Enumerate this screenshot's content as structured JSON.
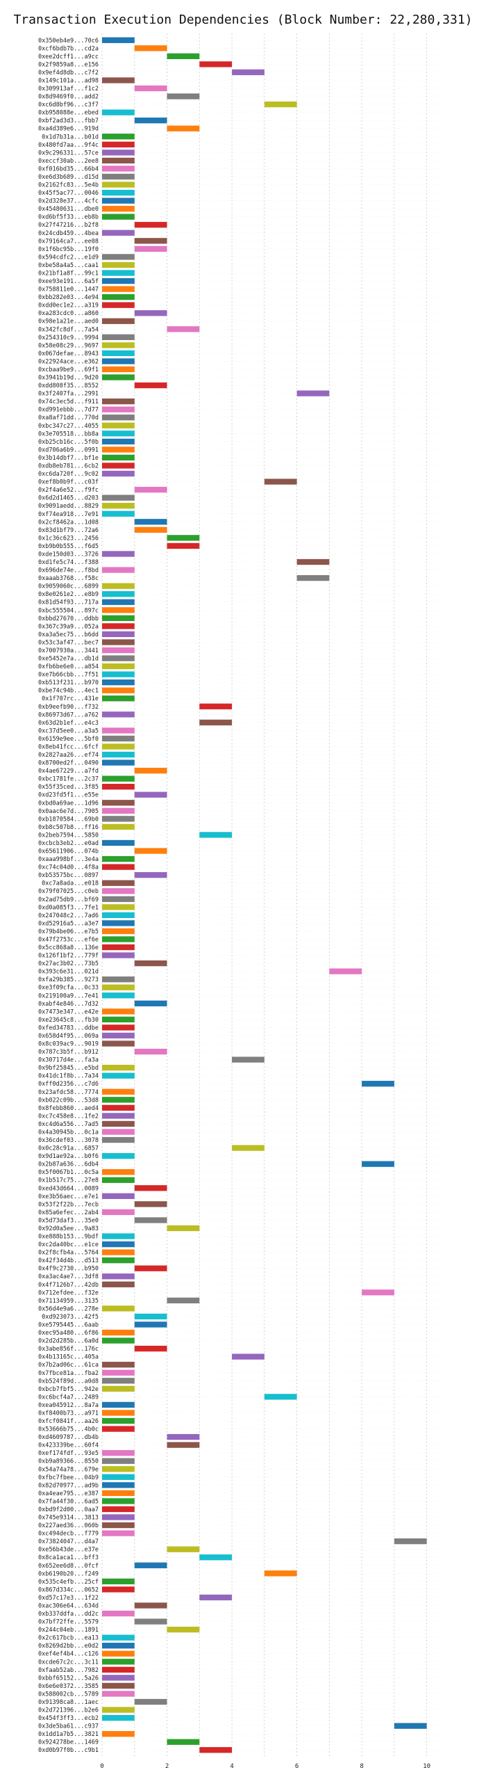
{
  "chart_data": {
    "type": "bar",
    "orientation": "horizontal",
    "title": "Transaction Execution Dependencies (Block Number: 22,280,331)",
    "xlabel": "",
    "ylabel": "",
    "xlim": [
      0,
      10.5
    ],
    "x_ticks": [
      0,
      2,
      4,
      6,
      8,
      10
    ],
    "grid": true,
    "legend": "none",
    "bar_duration": 1,
    "colors": [
      "#1f77b4",
      "#ff7f0e",
      "#2ca02c",
      "#d62728",
      "#9467bd",
      "#8c564b",
      "#e377c2",
      "#7f7f7f",
      "#bcbd22",
      "#17becf"
    ],
    "transactions": [
      {
        "label": "0x350eb4e9...70c6",
        "start": 0
      },
      {
        "label": "0xcf6bdb7b...cd2a",
        "start": 1
      },
      {
        "label": "0xee2dcff1...a9cc",
        "start": 2
      },
      {
        "label": "0x2f9859a8...e156",
        "start": 3
      },
      {
        "label": "0x9ef4d8db...c7f2",
        "start": 4
      },
      {
        "label": "0x149c101a...ad98",
        "start": 0
      },
      {
        "label": "0x309913af...f1c2",
        "start": 1
      },
      {
        "label": "0x8d9469f0...add2",
        "start": 2
      },
      {
        "label": "0xc6d8bf96...c3f7",
        "start": 5
      },
      {
        "label": "0xb958088e...ebed",
        "start": 0
      },
      {
        "label": "0xbf2ad3d3...fbb7",
        "start": 1
      },
      {
        "label": "0xa4d389e6...919d",
        "start": 2
      },
      {
        "label": "0x1d7b31a...b01d",
        "start": 0
      },
      {
        "label": "0x480fd7aa...9f4c",
        "start": 0
      },
      {
        "label": "0x9c296331...57ce",
        "start": 0
      },
      {
        "label": "0xeccf30ab...2ee8",
        "start": 0
      },
      {
        "label": "0xf016bd35...66b4",
        "start": 0
      },
      {
        "label": "0xe6d3b689...d15d",
        "start": 0
      },
      {
        "label": "0x2162fc83...5e4b",
        "start": 0
      },
      {
        "label": "0x45f5ac77...0046",
        "start": 0
      },
      {
        "label": "0x2d328e37...4cfc",
        "start": 0
      },
      {
        "label": "0x45480631...dbe0",
        "start": 0
      },
      {
        "label": "0xd6bf5f33...eb8b",
        "start": 0
      },
      {
        "label": "0x27f47216...b2f8",
        "start": 1
      },
      {
        "label": "0x24cdb459...4bea",
        "start": 0
      },
      {
        "label": "0x79164ca7...ee08",
        "start": 1
      },
      {
        "label": "0x1f6bc95b...19f0",
        "start": 1
      },
      {
        "label": "0x594cdfc2...e1d9",
        "start": 0
      },
      {
        "label": "0xbe58a4a5...caa1",
        "start": 0
      },
      {
        "label": "0x21bf1a8f...99c1",
        "start": 0
      },
      {
        "label": "0xee93e191...6a5f",
        "start": 0
      },
      {
        "label": "0x758811e0...1447",
        "start": 0
      },
      {
        "label": "0xbb282e03...4e94",
        "start": 0
      },
      {
        "label": "0xdd0ec1e2...a319",
        "start": 0
      },
      {
        "label": "0xa283cdc0...a860",
        "start": 1
      },
      {
        "label": "0x98e1a21e...aed0",
        "start": 0
      },
      {
        "label": "0x342fc8df...7a54",
        "start": 2
      },
      {
        "label": "0x254310c9...9994",
        "start": 0
      },
      {
        "label": "0x58e08c29...9697",
        "start": 0
      },
      {
        "label": "0x067defae...8943",
        "start": 0
      },
      {
        "label": "0x22924ace...e362",
        "start": 0
      },
      {
        "label": "0xcbaa9be9...69f1",
        "start": 0
      },
      {
        "label": "0x3941b19d...9d20",
        "start": 0
      },
      {
        "label": "0xdd808f35...8552",
        "start": 1
      },
      {
        "label": "0x3f2407fa...2991",
        "start": 6
      },
      {
        "label": "0x74c3ec5d...f911",
        "start": 0
      },
      {
        "label": "0xd991ebbb...7d77",
        "start": 0
      },
      {
        "label": "0xa8af71dd...770d",
        "start": 0
      },
      {
        "label": "0xbc347c27...4055",
        "start": 0
      },
      {
        "label": "0x3e705518...bb8a",
        "start": 0
      },
      {
        "label": "0xb25cb16c...5f0b",
        "start": 0
      },
      {
        "label": "0xd706a6b9...0991",
        "start": 0
      },
      {
        "label": "0x3b14dbf7...bf1e",
        "start": 0
      },
      {
        "label": "0xdb8eb781...6cb2",
        "start": 0
      },
      {
        "label": "0xc6da720f...9c02",
        "start": 0
      },
      {
        "label": "0xef8b0b9f...c03f",
        "start": 5
      },
      {
        "label": "0x2f4a6e52...f9fc",
        "start": 1
      },
      {
        "label": "0x6d2d1465...d203",
        "start": 0
      },
      {
        "label": "0x9091aedd...8829",
        "start": 0
      },
      {
        "label": "0xf74ea918...7e91",
        "start": 0
      },
      {
        "label": "0x2cf8462a...1d08",
        "start": 1
      },
      {
        "label": "0x83d1bf79...72a6",
        "start": 1
      },
      {
        "label": "0x1c36c623...2456",
        "start": 2
      },
      {
        "label": "0xb9b0b555...f6d5",
        "start": 2
      },
      {
        "label": "0xde150d03...3726",
        "start": 0
      },
      {
        "label": "0xd1fe5c74...f388",
        "start": 6
      },
      {
        "label": "0x696de74e...f8bd",
        "start": 0
      },
      {
        "label": "0xaaab3768...f58c",
        "start": 6
      },
      {
        "label": "0x9059060c...6899",
        "start": 0
      },
      {
        "label": "0x8e0261e2...e8b9",
        "start": 0
      },
      {
        "label": "0x81d54f93...717a",
        "start": 0
      },
      {
        "label": "0xbc555504...897c",
        "start": 0
      },
      {
        "label": "0xbbd27670...ddbb",
        "start": 0
      },
      {
        "label": "0x367c39a9...052a",
        "start": 0
      },
      {
        "label": "0xa3a5ec75...b6dd",
        "start": 0
      },
      {
        "label": "0x53c3af47...bec7",
        "start": 0
      },
      {
        "label": "0x7007930a...3441",
        "start": 0
      },
      {
        "label": "0xe5452e7a...db1d",
        "start": 0
      },
      {
        "label": "0xfb6be6e0...a854",
        "start": 0
      },
      {
        "label": "0xe7b66cbb...7f51",
        "start": 0
      },
      {
        "label": "0xb513f231...b970",
        "start": 0
      },
      {
        "label": "0xbe74c94b...4ec1",
        "start": 0
      },
      {
        "label": "0x1f707rc...431e",
        "start": 0
      },
      {
        "label": "0xb9eefb90...f732",
        "start": 3
      },
      {
        "label": "0x86973d67...a762",
        "start": 0
      },
      {
        "label": "0x63d2b1ef...e4c3",
        "start": 3
      },
      {
        "label": "0xc37d5ee0...a3a5",
        "start": 0
      },
      {
        "label": "0x6159e9ee...5bf0",
        "start": 0
      },
      {
        "label": "0x8eb41fcc...6fcf",
        "start": 0
      },
      {
        "label": "0x2827aa26...ef74",
        "start": 0
      },
      {
        "label": "0x8700ed2f...0490",
        "start": 0
      },
      {
        "label": "0x4ae67229...a7fd",
        "start": 1
      },
      {
        "label": "0xbc1781fe...2c37",
        "start": 0
      },
      {
        "label": "0x55f35ced...3f85",
        "start": 0
      },
      {
        "label": "0xd23fd5f1...e55e",
        "start": 1
      },
      {
        "label": "0xbd0a69ae...1d96",
        "start": 0
      },
      {
        "label": "0x0aac6e7d...7905",
        "start": 0
      },
      {
        "label": "0xb1870584...69b0",
        "start": 0
      },
      {
        "label": "0xb8c507b8...ff16",
        "start": 0
      },
      {
        "label": "0x2beb7594...5850",
        "start": 3
      },
      {
        "label": "0xcbcb3eb2...e0ad",
        "start": 0
      },
      {
        "label": "0x65611906...074b",
        "start": 1
      },
      {
        "label": "0xaaa998bf...3e4a",
        "start": 0
      },
      {
        "label": "0xc74c04d0...4f8a",
        "start": 0
      },
      {
        "label": "0xb53575bc...0897",
        "start": 1
      },
      {
        "label": "0xc7a8ada...e018",
        "start": 0
      },
      {
        "label": "0x79f07025...c0eb",
        "start": 0
      },
      {
        "label": "0x2ad75db9...bf69",
        "start": 0
      },
      {
        "label": "0xd0a085f3...7fe1",
        "start": 0
      },
      {
        "label": "0x247048c2...7ad6",
        "start": 0
      },
      {
        "label": "0xd52916a5...a3e7",
        "start": 0
      },
      {
        "label": "0x79b4be06...e7b5",
        "start": 0
      },
      {
        "label": "0x47f2753c...ef6e",
        "start": 0
      },
      {
        "label": "0x5cc868a8...136e",
        "start": 0
      },
      {
        "label": "0x126f1bf2...779f",
        "start": 0
      },
      {
        "label": "0x27ac3b02...73b5",
        "start": 1
      },
      {
        "label": "0x393c6e31...021d",
        "start": 7
      },
      {
        "label": "0xfa29b385...9273",
        "start": 0
      },
      {
        "label": "0xe3f09cfa...0c33",
        "start": 0
      },
      {
        "label": "0x219100a9...7e41",
        "start": 0
      },
      {
        "label": "0xabf4e846...7d32",
        "start": 1
      },
      {
        "label": "0x7473e347...e42e",
        "start": 0
      },
      {
        "label": "0xe23645c8...fb30",
        "start": 0
      },
      {
        "label": "0xfed34783...ddbe",
        "start": 0
      },
      {
        "label": "0x658d4f95...069a",
        "start": 0
      },
      {
        "label": "0x8c039ac9...9019",
        "start": 0
      },
      {
        "label": "0x787c3b5f...b912",
        "start": 1
      },
      {
        "label": "0x30717d4e...fa3a",
        "start": 4
      },
      {
        "label": "0x9bf25845...e5bd",
        "start": 0
      },
      {
        "label": "0x41dc1f8b...7a34",
        "start": 0
      },
      {
        "label": "0xff0d2356...c7d6",
        "start": 8
      },
      {
        "label": "0x23afdc58...7774",
        "start": 0
      },
      {
        "label": "0xb022c09b...53d8",
        "start": 0
      },
      {
        "label": "0x8febb860...aed4",
        "start": 0
      },
      {
        "label": "0xc7c458e8...1fe2",
        "start": 0
      },
      {
        "label": "0xc4d6a556...7ad5",
        "start": 0
      },
      {
        "label": "0x4a30945b...0c1a",
        "start": 0
      },
      {
        "label": "0x36cdef03...3078",
        "start": 0
      },
      {
        "label": "0x0c28c91a...6857",
        "start": 4
      },
      {
        "label": "0x9d1ae92a...b0f6",
        "start": 0
      },
      {
        "label": "0x2b87a636...6db4",
        "start": 8
      },
      {
        "label": "0x5f0067b1...0c5a",
        "start": 0
      },
      {
        "label": "0x1b517c75...27e8",
        "start": 0
      },
      {
        "label": "0xed43d664...0089",
        "start": 1
      },
      {
        "label": "0xe3b56aec...e7e1",
        "start": 0
      },
      {
        "label": "0x53f2f22b...7ecb",
        "start": 1
      },
      {
        "label": "0x85a6efec...2ab4",
        "start": 0
      },
      {
        "label": "0x5d73daf3...35e0",
        "start": 1
      },
      {
        "label": "0x92d0a5ee...9a83",
        "start": 2
      },
      {
        "label": "0xe888b153...9bdf",
        "start": 0
      },
      {
        "label": "0xc2da40bc...e1ce",
        "start": 0
      },
      {
        "label": "0x2f8cfb4a...5764",
        "start": 0
      },
      {
        "label": "0x42f34d4b...d513",
        "start": 0
      },
      {
        "label": "0x4f9c2730...b950",
        "start": 1
      },
      {
        "label": "0xa3ac4ae7...3df8",
        "start": 0
      },
      {
        "label": "0x4f7126b7...42db",
        "start": 0
      },
      {
        "label": "0x712efdee...f32e",
        "start": 8
      },
      {
        "label": "0x71134959...3135",
        "start": 2
      },
      {
        "label": "0x56d4e9a6...278e",
        "start": 0
      },
      {
        "label": "0xd923073...42f5",
        "start": 1
      },
      {
        "label": "0xe5795445...6aab",
        "start": 1
      },
      {
        "label": "0xec95a480...6f86",
        "start": 0
      },
      {
        "label": "0x2d2d285b...6a0d",
        "start": 0
      },
      {
        "label": "0x3abe856f...176c",
        "start": 1
      },
      {
        "label": "0x4b13165c...405a",
        "start": 4
      },
      {
        "label": "0x7b2ad06c...61ca",
        "start": 0
      },
      {
        "label": "0x7fbce81a...fba2",
        "start": 0
      },
      {
        "label": "0xb524f89d...a0d8",
        "start": 0
      },
      {
        "label": "0xbcb7fbf5...942e",
        "start": 0
      },
      {
        "label": "0xc6bcf4a7...2489",
        "start": 5
      },
      {
        "label": "0xea045912...8a7a",
        "start": 0
      },
      {
        "label": "0xf8400b73...a971",
        "start": 0
      },
      {
        "label": "0xfcf0841f...aa26",
        "start": 0
      },
      {
        "label": "0x53666b75...4b0c",
        "start": 0
      },
      {
        "label": "0xd4609787...db4b",
        "start": 2
      },
      {
        "label": "0x423339be...60f4",
        "start": 2
      },
      {
        "label": "0xef174fdf...93e5",
        "start": 0
      },
      {
        "label": "0xb9a89366...8550",
        "start": 0
      },
      {
        "label": "0x54a74a78...679e",
        "start": 0
      },
      {
        "label": "0xfbc7fbee...04b9",
        "start": 0
      },
      {
        "label": "0x82d70977...ad9b",
        "start": 0
      },
      {
        "label": "0xa4eae795...e387",
        "start": 0
      },
      {
        "label": "0x7fa44f30...6ad5",
        "start": 0
      },
      {
        "label": "0xbd9f2d00...0aa7",
        "start": 0
      },
      {
        "label": "0x745e9314...3813",
        "start": 0
      },
      {
        "label": "0x227aed36...060b",
        "start": 0
      },
      {
        "label": "0xc494decb...f779",
        "start": 0
      },
      {
        "label": "0x73824047...d4a7",
        "start": 9
      },
      {
        "label": "0xe56b43de...e37e",
        "start": 2
      },
      {
        "label": "0x8ca1aca1...bff3",
        "start": 3
      },
      {
        "label": "0x652ee6d8...0fcf",
        "start": 1
      },
      {
        "label": "0xb6190b20...f249",
        "start": 5
      },
      {
        "label": "0x535c4efb...25cf",
        "start": 0
      },
      {
        "label": "0x867d334c...0652",
        "start": 0
      },
      {
        "label": "0xd57c17e3...1f22",
        "start": 3
      },
      {
        "label": "0xac306e64...634d",
        "start": 1
      },
      {
        "label": "0xb337ddfa...dd2c",
        "start": 0
      },
      {
        "label": "0x7bf72ffe...5579",
        "start": 1
      },
      {
        "label": "0x244c04eb...1891",
        "start": 2
      },
      {
        "label": "0x2c617bcb...ea13",
        "start": 0
      },
      {
        "label": "0x8269d2bb...e0d2",
        "start": 0
      },
      {
        "label": "0xef4ef4b4...c126",
        "start": 0
      },
      {
        "label": "0xcde67c2c...3c11",
        "start": 0
      },
      {
        "label": "0xfaab52ab...7982",
        "start": 0
      },
      {
        "label": "0xbbf65152...5a26",
        "start": 0
      },
      {
        "label": "0x6e6e0372...3585",
        "start": 0
      },
      {
        "label": "0x588002cb...5789",
        "start": 0
      },
      {
        "label": "0x91398ca8...1aec",
        "start": 1
      },
      {
        "label": "0x2d721396...b2e6",
        "start": 0
      },
      {
        "label": "0x454f3ff3...ecb2",
        "start": 0
      },
      {
        "label": "0x3de5ba61...c937",
        "start": 9
      },
      {
        "label": "0x1dd1a7b5...3821",
        "start": 0
      },
      {
        "label": "0x924278be...1469",
        "start": 2
      },
      {
        "label": "0xd0b97f0b...c9b1",
        "start": 3
      }
    ]
  }
}
